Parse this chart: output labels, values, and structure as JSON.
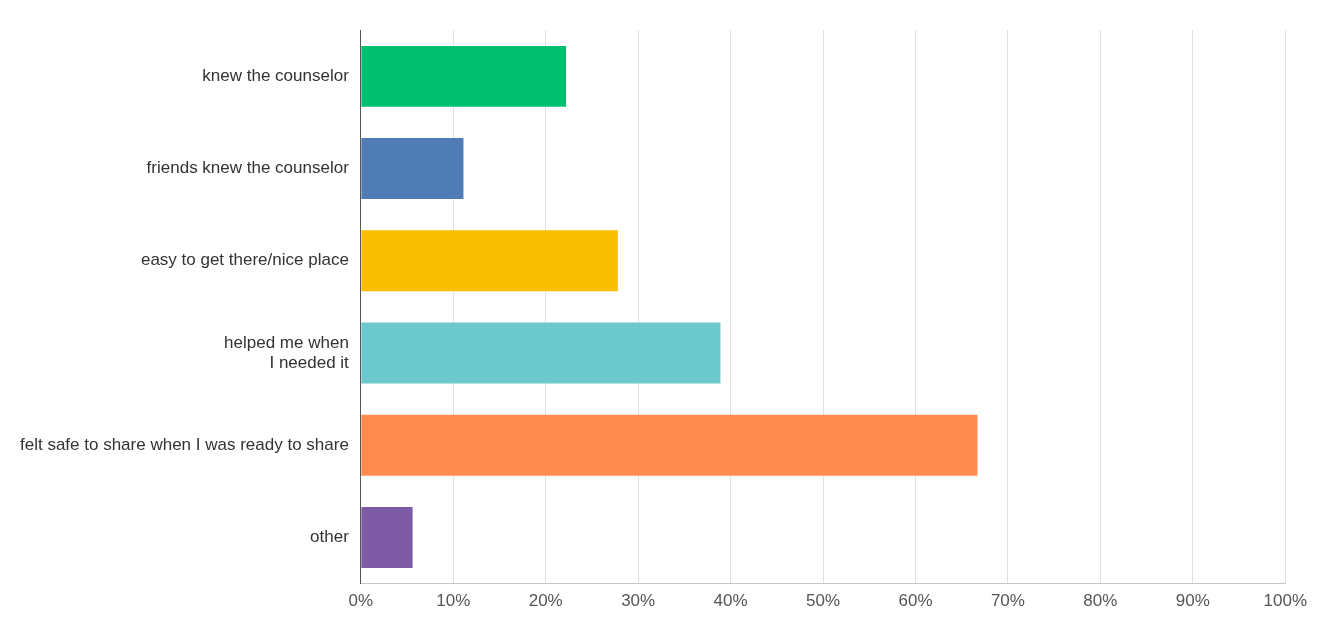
{
  "chart_data": {
    "type": "bar",
    "orientation": "horizontal",
    "categories": [
      "knew the counselor",
      "friends knew the counselor",
      "easy to get there/nice place",
      "helped me when\nI needed it",
      "felt safe to share when I was ready to share",
      "other"
    ],
    "values": [
      22.2,
      11.1,
      27.8,
      38.9,
      66.7,
      5.6
    ],
    "colors": [
      "#00bf6f",
      "#507cb6",
      "#f9be00",
      "#6bc8cd",
      "#ff8b4f",
      "#7d5ba6"
    ],
    "xlim": [
      0,
      100
    ],
    "xticks": [
      {
        "value": 0,
        "label": "0%"
      },
      {
        "value": 10,
        "label": "10%"
      },
      {
        "value": 20,
        "label": "20%"
      },
      {
        "value": 30,
        "label": "30%"
      },
      {
        "value": 40,
        "label": "40%"
      },
      {
        "value": 50,
        "label": "50%"
      },
      {
        "value": 60,
        "label": "60%"
      },
      {
        "value": 70,
        "label": "70%"
      },
      {
        "value": 80,
        "label": "80%"
      },
      {
        "value": 90,
        "label": "90%"
      },
      {
        "value": 100,
        "label": "100%"
      }
    ],
    "grid": "x",
    "legend": false
  }
}
